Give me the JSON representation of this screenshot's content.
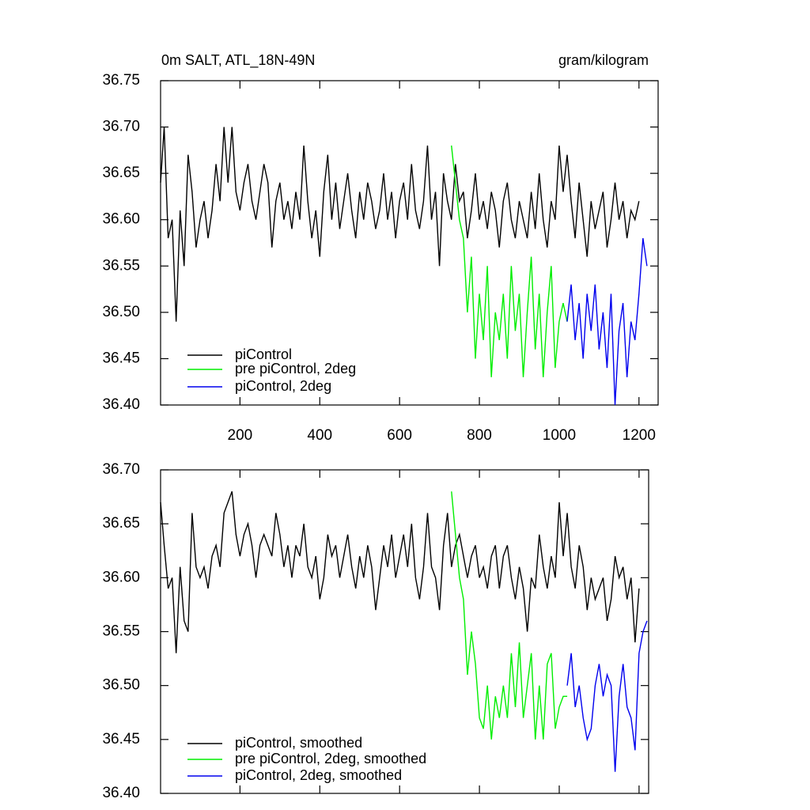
{
  "chart_data": [
    {
      "type": "line",
      "title_left": "0m SALT, ATL_18N-49N",
      "title_right": "gram/kilogram",
      "xlim": [
        1,
        1248
      ],
      "xticks": [
        200,
        400,
        600,
        800,
        1000,
        1200
      ],
      "show_xtick_labels": true,
      "ylim": [
        36.4,
        36.75
      ],
      "yticks": [
        {
          "value": 36.4,
          "label": "36.40"
        },
        {
          "value": 36.45,
          "label": "36.45"
        },
        {
          "value": 36.5,
          "label": "36.50"
        },
        {
          "value": 36.55,
          "label": "36.55"
        },
        {
          "value": 36.6,
          "label": "36.60"
        },
        {
          "value": 36.65,
          "label": "36.65"
        },
        {
          "value": 36.7,
          "label": "36.70"
        },
        {
          "value": 36.75,
          "label": "36.75"
        }
      ],
      "legend": "lower left",
      "series": [
        {
          "name": "piControl",
          "color": "#000000",
          "x": [
            1,
            10,
            20,
            30,
            40,
            50,
            60,
            70,
            80,
            90,
            100,
            110,
            120,
            130,
            140,
            150,
            160,
            170,
            180,
            190,
            200,
            210,
            220,
            230,
            240,
            250,
            260,
            270,
            280,
            290,
            300,
            310,
            320,
            330,
            340,
            350,
            360,
            370,
            380,
            390,
            400,
            410,
            420,
            430,
            440,
            450,
            460,
            470,
            480,
            490,
            500,
            510,
            520,
            530,
            540,
            550,
            560,
            570,
            580,
            590,
            600,
            610,
            620,
            630,
            640,
            650,
            660,
            670,
            680,
            690,
            700,
            710,
            720,
            730,
            740,
            750,
            760,
            770,
            780,
            790,
            800,
            810,
            820,
            830,
            840,
            850,
            860,
            870,
            880,
            890,
            900,
            910,
            920,
            930,
            940,
            950,
            960,
            970,
            980,
            990,
            1000,
            1010,
            1020,
            1030,
            1040,
            1050,
            1060,
            1070,
            1080,
            1090,
            1100,
            1110,
            1120,
            1130,
            1140,
            1150,
            1160,
            1170,
            1180,
            1190,
            1200
          ],
          "values": [
            36.64,
            36.7,
            36.58,
            36.6,
            36.49,
            36.61,
            36.55,
            36.67,
            36.63,
            36.57,
            36.6,
            36.62,
            36.58,
            36.61,
            36.66,
            36.62,
            36.7,
            36.64,
            36.7,
            36.63,
            36.61,
            36.64,
            36.66,
            36.62,
            36.6,
            36.63,
            36.66,
            36.64,
            36.57,
            36.62,
            36.64,
            36.6,
            36.62,
            36.59,
            36.63,
            36.6,
            36.68,
            36.62,
            36.58,
            36.61,
            36.56,
            36.63,
            36.67,
            36.6,
            36.64,
            36.59,
            36.62,
            36.65,
            36.61,
            36.58,
            36.63,
            36.6,
            36.64,
            36.62,
            36.59,
            36.61,
            36.65,
            36.6,
            36.63,
            36.58,
            36.62,
            36.64,
            36.6,
            36.66,
            36.61,
            36.59,
            36.62,
            36.68,
            36.6,
            36.63,
            36.55,
            36.65,
            36.62,
            36.6,
            36.66,
            36.62,
            36.63,
            36.58,
            36.61,
            36.65,
            36.6,
            36.62,
            36.59,
            36.63,
            36.61,
            36.57,
            36.62,
            36.64,
            36.6,
            36.58,
            36.62,
            36.6,
            36.58,
            36.63,
            36.59,
            36.65,
            36.6,
            36.57,
            36.62,
            36.6,
            36.68,
            36.63,
            36.67,
            36.62,
            36.58,
            36.64,
            36.6,
            36.56,
            36.62,
            36.59,
            36.61,
            36.63,
            36.57,
            36.6,
            36.64,
            36.6,
            36.62,
            36.58,
            36.61,
            36.6,
            36.62
          ]
        },
        {
          "name": "pre piControl, 2deg",
          "color": "#00ee00",
          "x": [
            730,
            740,
            750,
            760,
            770,
            780,
            790,
            800,
            810,
            820,
            830,
            840,
            850,
            860,
            870,
            880,
            890,
            900,
            910,
            920,
            930,
            940,
            950,
            960,
            970,
            980,
            990,
            1000,
            1010,
            1020
          ],
          "values": [
            36.68,
            36.64,
            36.6,
            36.58,
            36.5,
            36.56,
            36.45,
            36.52,
            36.47,
            36.55,
            36.43,
            36.5,
            36.47,
            36.52,
            36.45,
            36.55,
            36.48,
            36.52,
            36.43,
            36.5,
            36.56,
            36.46,
            36.52,
            36.43,
            36.5,
            36.55,
            36.44,
            36.49,
            36.51,
            36.49
          ]
        },
        {
          "name": "piControl, 2deg",
          "color": "#0000ee",
          "x": [
            1020,
            1030,
            1040,
            1050,
            1060,
            1070,
            1080,
            1090,
            1100,
            1110,
            1120,
            1130,
            1140,
            1150,
            1160,
            1170,
            1180,
            1190,
            1200,
            1210,
            1220
          ],
          "values": [
            36.49,
            36.53,
            36.47,
            36.51,
            36.45,
            36.52,
            36.48,
            36.53,
            36.46,
            36.5,
            36.44,
            36.52,
            36.4,
            36.48,
            36.51,
            36.43,
            36.49,
            36.47,
            36.52,
            36.58,
            36.55
          ]
        }
      ]
    },
    {
      "type": "line",
      "xlim": [
        1,
        1224
      ],
      "xticks": [
        200,
        400,
        600,
        800,
        1000,
        1200
      ],
      "show_xtick_labels": false,
      "ylim": [
        36.4,
        36.7
      ],
      "yticks": [
        {
          "value": 36.4,
          "label": "36.40"
        },
        {
          "value": 36.45,
          "label": "36.45"
        },
        {
          "value": 36.5,
          "label": "36.50"
        },
        {
          "value": 36.55,
          "label": "36.55"
        },
        {
          "value": 36.6,
          "label": "36.60"
        },
        {
          "value": 36.65,
          "label": "36.65"
        },
        {
          "value": 36.7,
          "label": "36.70"
        }
      ],
      "legend": "lower left",
      "series": [
        {
          "name": "piControl, smoothed",
          "color": "#000000",
          "x": [
            1,
            10,
            20,
            30,
            40,
            50,
            60,
            70,
            80,
            90,
            100,
            110,
            120,
            130,
            140,
            150,
            160,
            170,
            180,
            190,
            200,
            210,
            220,
            230,
            240,
            250,
            260,
            270,
            280,
            290,
            300,
            310,
            320,
            330,
            340,
            350,
            360,
            370,
            380,
            390,
            400,
            410,
            420,
            430,
            440,
            450,
            460,
            470,
            480,
            490,
            500,
            510,
            520,
            530,
            540,
            550,
            560,
            570,
            580,
            590,
            600,
            610,
            620,
            630,
            640,
            650,
            660,
            670,
            680,
            690,
            700,
            710,
            720,
            730,
            740,
            750,
            760,
            770,
            780,
            790,
            800,
            810,
            820,
            830,
            840,
            850,
            860,
            870,
            880,
            890,
            900,
            910,
            920,
            930,
            940,
            950,
            960,
            970,
            980,
            990,
            1000,
            1010,
            1020,
            1030,
            1040,
            1050,
            1060,
            1070,
            1080,
            1090,
            1100,
            1110,
            1120,
            1130,
            1140,
            1150,
            1160,
            1170,
            1180,
            1190,
            1200
          ],
          "values": [
            36.67,
            36.63,
            36.59,
            36.6,
            36.53,
            36.61,
            36.56,
            36.55,
            36.66,
            36.61,
            36.6,
            36.61,
            36.59,
            36.62,
            36.63,
            36.61,
            36.66,
            36.67,
            36.68,
            36.64,
            36.62,
            36.64,
            36.65,
            36.63,
            36.6,
            36.63,
            36.64,
            36.63,
            36.62,
            36.66,
            36.64,
            36.61,
            36.63,
            36.6,
            36.63,
            36.62,
            36.65,
            36.61,
            36.6,
            36.62,
            36.58,
            36.6,
            36.64,
            36.62,
            36.63,
            36.6,
            36.62,
            36.64,
            36.61,
            36.59,
            36.62,
            36.6,
            36.63,
            36.61,
            36.57,
            36.6,
            36.63,
            36.61,
            36.64,
            36.6,
            36.62,
            36.64,
            36.61,
            36.65,
            36.6,
            36.58,
            36.61,
            36.66,
            36.61,
            36.6,
            36.57,
            36.63,
            36.66,
            36.61,
            36.63,
            36.64,
            36.62,
            36.6,
            36.62,
            36.63,
            36.6,
            36.61,
            36.59,
            36.62,
            36.63,
            36.59,
            36.62,
            36.63,
            36.6,
            36.58,
            36.61,
            36.59,
            36.55,
            36.6,
            36.59,
            36.64,
            36.61,
            36.59,
            36.62,
            36.6,
            36.67,
            36.62,
            36.66,
            36.61,
            36.59,
            36.63,
            36.61,
            36.57,
            36.6,
            36.58,
            36.59,
            36.6,
            36.56,
            36.58,
            36.62,
            36.6,
            36.61,
            36.58,
            36.6,
            36.54,
            36.59
          ]
        },
        {
          "name": "pre piControl, 2deg, smoothed",
          "color": "#00ee00",
          "x": [
            730,
            740,
            750,
            760,
            770,
            780,
            790,
            800,
            810,
            820,
            830,
            840,
            850,
            860,
            870,
            880,
            890,
            900,
            910,
            920,
            930,
            940,
            950,
            960,
            970,
            980,
            990,
            1000,
            1010,
            1020
          ],
          "values": [
            36.68,
            36.64,
            36.6,
            36.58,
            36.51,
            36.55,
            36.52,
            36.47,
            36.46,
            36.5,
            36.45,
            36.49,
            36.47,
            36.5,
            36.47,
            36.53,
            36.48,
            36.54,
            36.47,
            36.5,
            36.53,
            36.45,
            36.5,
            36.45,
            36.52,
            36.53,
            36.46,
            36.48,
            36.49,
            36.49
          ]
        },
        {
          "name": "piControl, 2deg, smoothed",
          "color": "#0000ee",
          "x": [
            1020,
            1030,
            1040,
            1050,
            1060,
            1070,
            1080,
            1090,
            1100,
            1110,
            1120,
            1130,
            1140,
            1150,
            1160,
            1170,
            1180,
            1190,
            1200,
            1210,
            1220
          ],
          "values": [
            36.5,
            36.53,
            36.48,
            36.5,
            36.47,
            36.45,
            36.46,
            36.5,
            36.52,
            36.49,
            36.51,
            36.5,
            36.42,
            36.49,
            36.52,
            36.48,
            36.47,
            36.44,
            36.53,
            36.55,
            36.56
          ]
        }
      ]
    }
  ]
}
